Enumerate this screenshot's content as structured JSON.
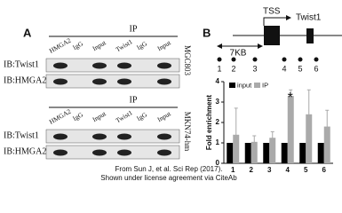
{
  "panel_a": {
    "label": "A",
    "blots": [
      {
        "ip": "IP",
        "columns": [
          "HMGA2",
          "IgG",
          "Input",
          "Twist1",
          "IgG",
          "Input"
        ],
        "cell_line": "MGC803",
        "rows": [
          "IB:Twist1",
          "IB:HMGA2"
        ]
      },
      {
        "ip": "IP",
        "columns": [
          "HMGA2",
          "IgG",
          "Input",
          "Twist1",
          "IgG",
          "Input"
        ],
        "cell_line": "MKN74-hm",
        "rows": [
          "IB:Twist1",
          "IB:HMGA2"
        ]
      }
    ]
  },
  "panel_b": {
    "label": "B",
    "tss": "TSS",
    "gene": "Twist1",
    "distance": "7KB",
    "sites": [
      "1",
      "2",
      "3",
      "4",
      "5",
      "6"
    ]
  },
  "chart_data": {
    "type": "bar",
    "y_label": "Fold enrichment",
    "categories": [
      "1",
      "2",
      "3",
      "4",
      "5",
      "6"
    ],
    "series": [
      {
        "name": "input",
        "color": "#000000",
        "values": [
          1,
          1,
          1,
          1,
          1,
          1
        ]
      },
      {
        "name": "IP",
        "color": "#aaaaaa",
        "values": [
          1.4,
          1.05,
          1.25,
          3.3,
          2.4,
          1.8
        ],
        "errors": [
          1.3,
          0.3,
          0.3,
          0.3,
          1.2,
          0.8
        ]
      }
    ],
    "ylim": [
      0,
      4
    ],
    "yticks": [
      0,
      1,
      2,
      3,
      4
    ],
    "annotation": "*"
  },
  "footer": [
    "From Sun J, et al. Sci Rep (2017).",
    "Shown under license agreement via CiteAb"
  ]
}
